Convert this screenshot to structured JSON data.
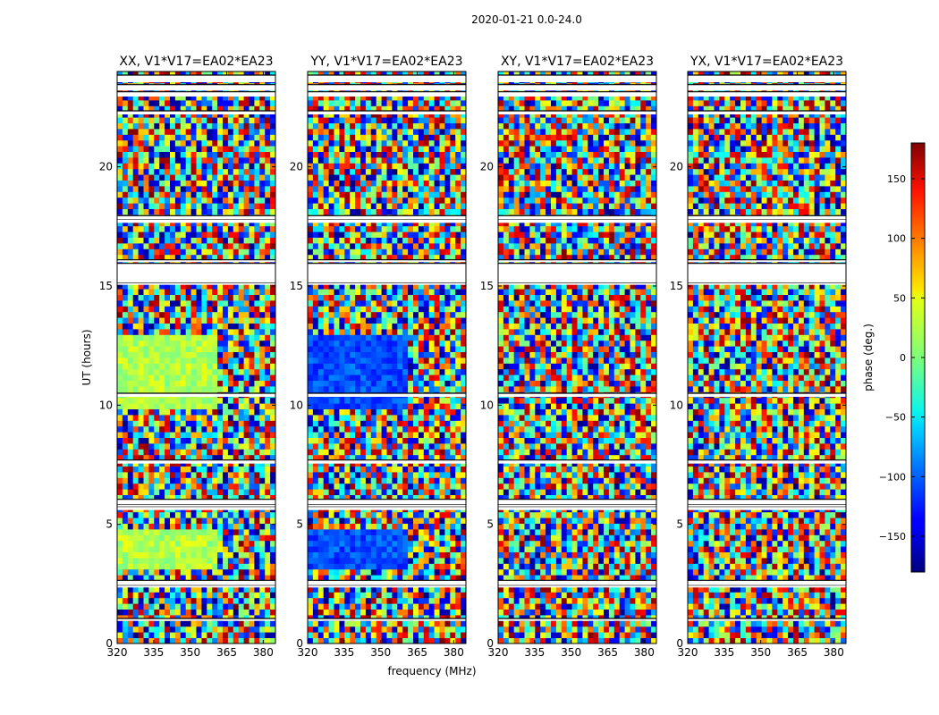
{
  "figure": {
    "suptitle": "2020-01-21 0.0-24.0",
    "xlabel": "frequency (MHz)",
    "ylabel": "UT (hours)"
  },
  "chart_data": {
    "type": "heatmap",
    "quantity": "phase",
    "colormap": "jet",
    "x_range": [
      320,
      385
    ],
    "y_range": [
      0,
      24
    ],
    "xticks": [
      320,
      335,
      350,
      365,
      380
    ],
    "yticks": [
      0,
      5,
      10,
      15,
      20
    ],
    "panels": [
      {
        "title": "XX, V1*V17=EA02*EA23"
      },
      {
        "title": "YY, V1*V17=EA02*EA23"
      },
      {
        "title": "XY, V1*V17=EA02*EA23"
      },
      {
        "title": "YX, V1*V17=EA02*EA23"
      }
    ],
    "no_data_ut_bands": [
      [
        0.95,
        1.05
      ],
      [
        2.35,
        2.45
      ],
      [
        2.45,
        2.65
      ],
      [
        5.6,
        5.75
      ],
      [
        5.75,
        5.85
      ],
      [
        5.85,
        6.05
      ],
      [
        7.55,
        7.7
      ],
      [
        10.35,
        10.5
      ],
      [
        15.05,
        15.15
      ],
      [
        15.15,
        15.95
      ],
      [
        16.0,
        16.1
      ],
      [
        17.65,
        17.8
      ],
      [
        17.8,
        17.95
      ],
      [
        22.2,
        22.35
      ],
      [
        22.95,
        23.15
      ],
      [
        23.2,
        23.45
      ],
      [
        23.55,
        23.85
      ]
    ],
    "colorbar": {
      "label": "phase (deg.)",
      "range": [
        -180,
        180
      ],
      "ticks": [
        -150,
        -100,
        -50,
        0,
        50,
        100,
        150
      ],
      "tick_labels": [
        "−150",
        "−100",
        "−50",
        "0",
        "50",
        "100",
        "150"
      ]
    }
  }
}
